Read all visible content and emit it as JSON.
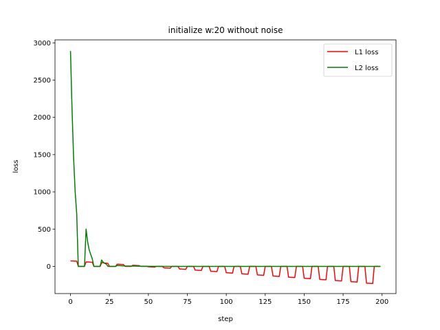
{
  "chart_data": {
    "type": "line",
    "title": "initialize w:20 without noise",
    "xlabel": "step",
    "ylabel": "loss",
    "xlim": [
      -9.95,
      208.95
    ],
    "ylim": [
      -365,
      3040
    ],
    "xticks": [
      0,
      25,
      50,
      75,
      100,
      125,
      150,
      175,
      200
    ],
    "yticks": [
      0,
      500,
      1000,
      1500,
      2000,
      2500,
      3000
    ],
    "grid": false,
    "legend_position": "top-right",
    "series": [
      {
        "name": "L1 loss",
        "color": "#ff0000",
        "x": [
          0,
          4,
          5,
          9,
          10,
          14,
          15,
          19,
          20,
          24,
          25,
          29,
          30,
          34,
          35,
          39,
          40,
          44,
          45,
          49,
          50,
          54,
          55,
          59,
          60,
          64,
          65,
          69,
          70,
          74,
          75,
          79,
          80,
          84,
          85,
          89,
          90,
          94,
          95,
          99,
          100,
          104,
          105,
          109,
          110,
          114,
          115,
          119,
          120,
          124,
          125,
          129,
          130,
          134,
          135,
          139,
          140,
          144,
          145,
          149,
          150,
          154,
          155,
          159,
          160,
          164,
          165,
          169,
          170,
          174,
          175,
          179,
          180,
          184,
          185,
          189,
          190,
          194,
          195,
          199
        ],
        "y": [
          73,
          70,
          0,
          0,
          60,
          55,
          0,
          0,
          50,
          40,
          0,
          0,
          30,
          25,
          0,
          0,
          15,
          10,
          0,
          0,
          -5,
          -10,
          0,
          0,
          -20,
          -25,
          0,
          0,
          -35,
          -40,
          0,
          0,
          -50,
          -55,
          0,
          0,
          -65,
          -70,
          0,
          0,
          -85,
          -90,
          0,
          0,
          -100,
          -105,
          0,
          0,
          -115,
          -120,
          0,
          0,
          -130,
          -135,
          0,
          0,
          -145,
          -150,
          0,
          0,
          -160,
          -165,
          0,
          0,
          -175,
          -180,
          0,
          0,
          -190,
          -195,
          0,
          0,
          -205,
          -210,
          0,
          0,
          -225,
          -230,
          0,
          0
        ]
      },
      {
        "name": "L2 loss",
        "color": "#008000",
        "x": [
          0,
          1,
          2,
          3,
          4,
          5,
          6,
          7,
          8,
          9,
          10,
          11,
          12,
          13,
          14,
          15,
          16,
          17,
          18,
          19,
          20,
          21,
          22,
          23,
          24,
          25,
          26,
          27,
          28,
          29,
          30,
          35,
          40,
          45,
          50,
          60,
          70,
          80,
          90,
          100,
          120,
          140,
          160,
          180,
          199
        ],
        "y": [
          2890,
          2100,
          1450,
          1000,
          700,
          0,
          0,
          0,
          0,
          0,
          500,
          330,
          220,
          160,
          100,
          0,
          0,
          0,
          0,
          0,
          85,
          55,
          40,
          30,
          0,
          0,
          0,
          0,
          0,
          0,
          12,
          5,
          4,
          2,
          1,
          0,
          0,
          0,
          0,
          0,
          0,
          0,
          0,
          0,
          0
        ]
      }
    ]
  }
}
